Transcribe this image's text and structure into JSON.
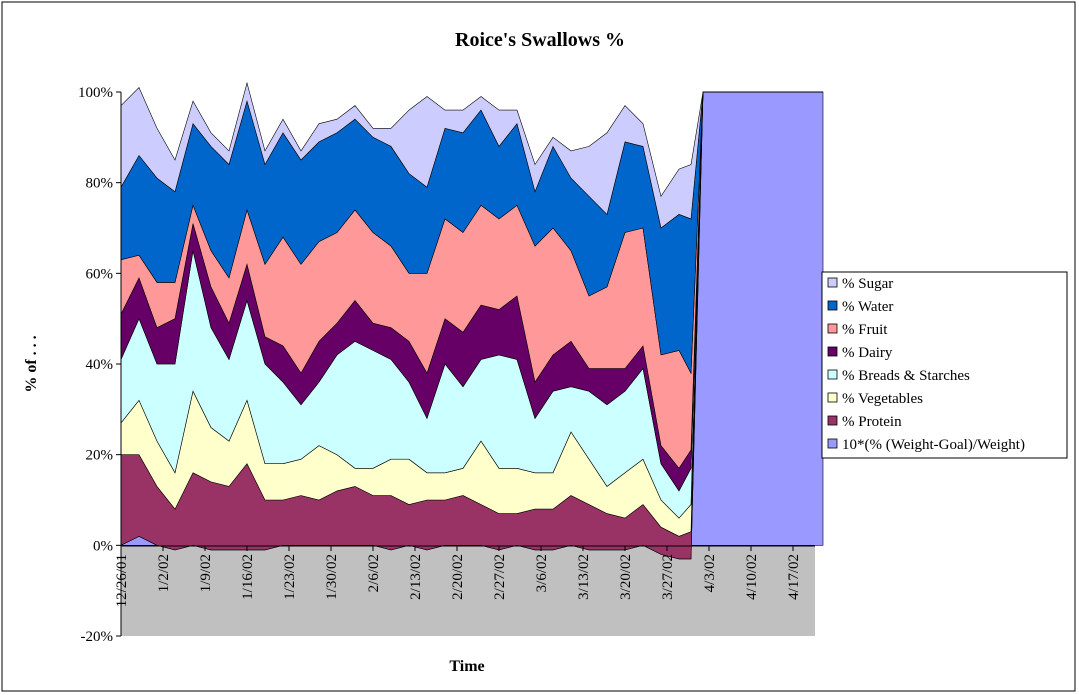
{
  "chart_data": {
    "type": "area",
    "stacked": true,
    "title": "Roice's Swallows %",
    "xlabel": "Time",
    "ylabel": "% of . . .",
    "ylim": [
      -20,
      100
    ],
    "y_ticks": [
      "100%",
      "80%",
      "60%",
      "40%",
      "20%",
      "0%",
      "-20%"
    ],
    "x_ticks": [
      "12/26/01",
      "1/2/02",
      "1/9/02",
      "1/16/02",
      "1/23/02",
      "1/30/02",
      "2/6/02",
      "2/13/02",
      "2/20/02",
      "2/27/02",
      "3/6/02",
      "3/13/02",
      "3/20/02",
      "3/27/02",
      "4/3/02",
      "4/10/02",
      "4/17/02"
    ],
    "x": [
      "12/26/01",
      "12/29/01",
      "1/1/02",
      "1/4/02",
      "1/7/02",
      "1/10/02",
      "1/13/02",
      "1/16/02",
      "1/19/02",
      "1/22/02",
      "1/25/02",
      "1/28/02",
      "1/31/02",
      "2/3/02",
      "2/6/02",
      "2/9/02",
      "2/12/02",
      "2/15/02",
      "2/18/02",
      "2/21/02",
      "2/24/02",
      "2/27/02",
      "3/2/02",
      "3/5/02",
      "3/8/02",
      "3/11/02",
      "3/14/02",
      "3/17/02",
      "3/20/02",
      "3/23/02",
      "3/26/02",
      "3/29/02",
      "3/31/02",
      "4/2/02",
      "4/4/02",
      "4/7/02",
      "4/10/02",
      "4/13/02",
      "4/16/02",
      "4/19/02",
      "4/22/02"
    ],
    "series": [
      {
        "name": "% Sugar",
        "color": "#ccccff",
        "values": [
          18,
          15,
          11,
          7,
          5,
          3,
          3,
          4,
          3,
          3,
          2,
          4,
          3,
          3,
          2,
          4,
          14,
          20,
          4,
          5,
          3,
          8,
          3,
          6,
          2,
          6,
          11,
          18,
          8,
          5,
          7,
          10,
          12,
          0,
          0,
          0,
          0,
          0,
          0,
          0,
          0
        ]
      },
      {
        "name": "% Water",
        "color": "#0066cc",
        "values": [
          16,
          22,
          23,
          20,
          18,
          23,
          25,
          24,
          22,
          23,
          23,
          22,
          22,
          20,
          21,
          22,
          22,
          19,
          20,
          22,
          21,
          16,
          18,
          12,
          18,
          16,
          22,
          16,
          20,
          18,
          28,
          30,
          34,
          0,
          0,
          0,
          0,
          0,
          0,
          0,
          0
        ]
      },
      {
        "name": "% Fruit",
        "color": "#ff9999",
        "values": [
          12,
          5,
          10,
          8,
          4,
          8,
          10,
          12,
          16,
          24,
          24,
          22,
          20,
          20,
          20,
          18,
          15,
          22,
          22,
          22,
          22,
          20,
          20,
          30,
          28,
          20,
          16,
          18,
          30,
          26,
          20,
          26,
          17,
          0,
          0,
          0,
          0,
          0,
          0,
          0,
          0
        ]
      },
      {
        "name": "% Dairy",
        "color": "#660066",
        "values": [
          10,
          9,
          8,
          10,
          6,
          9,
          8,
          8,
          6,
          8,
          7,
          9,
          7,
          9,
          6,
          7,
          9,
          10,
          10,
          12,
          12,
          10,
          14,
          8,
          8,
          10,
          5,
          8,
          5,
          5,
          4,
          5,
          4,
          0,
          0,
          0,
          0,
          0,
          0,
          0,
          0
        ]
      },
      {
        "name": "% Breads & Starches",
        "color": "#ccffff",
        "values": [
          14,
          18,
          17,
          24,
          31,
          22,
          18,
          22,
          22,
          18,
          12,
          14,
          22,
          28,
          26,
          22,
          17,
          12,
          24,
          18,
          18,
          25,
          24,
          12,
          18,
          10,
          15,
          18,
          18,
          20,
          8,
          6,
          8,
          0,
          0,
          0,
          0,
          0,
          0,
          0,
          0
        ]
      },
      {
        "name": "% Vegetables",
        "color": "#ffffcc",
        "values": [
          7,
          12,
          10,
          8,
          18,
          12,
          10,
          14,
          8,
          8,
          8,
          12,
          8,
          4,
          6,
          8,
          10,
          6,
          6,
          6,
          14,
          10,
          10,
          8,
          8,
          14,
          10,
          6,
          10,
          10,
          6,
          4,
          6,
          0,
          0,
          0,
          0,
          0,
          0,
          0,
          0
        ]
      },
      {
        "name": "% Protein",
        "color": "#993366",
        "values": [
          20,
          18,
          13,
          9,
          16,
          15,
          14,
          19,
          11,
          10,
          11,
          10,
          12,
          13,
          11,
          12,
          9,
          11,
          10,
          11,
          9,
          8,
          7,
          9,
          9,
          11,
          10,
          8,
          7,
          9,
          6,
          5,
          6,
          0,
          0,
          0,
          0,
          0,
          0,
          0,
          0
        ]
      },
      {
        "name": "10*(% (Weight-Goal)/Weight)",
        "color": "#9999ff",
        "values": [
          0,
          2,
          0,
          -1,
          0,
          -1,
          -1,
          -1,
          -1,
          0,
          0,
          0,
          0,
          0,
          0,
          -1,
          0,
          -1,
          0,
          0,
          0,
          -1,
          0,
          -1,
          -1,
          0,
          -1,
          -1,
          -1,
          0,
          -2,
          -3,
          -3,
          100,
          100,
          100,
          100,
          100,
          100,
          100,
          100
        ]
      }
    ],
    "legend": "right",
    "grid": false
  }
}
